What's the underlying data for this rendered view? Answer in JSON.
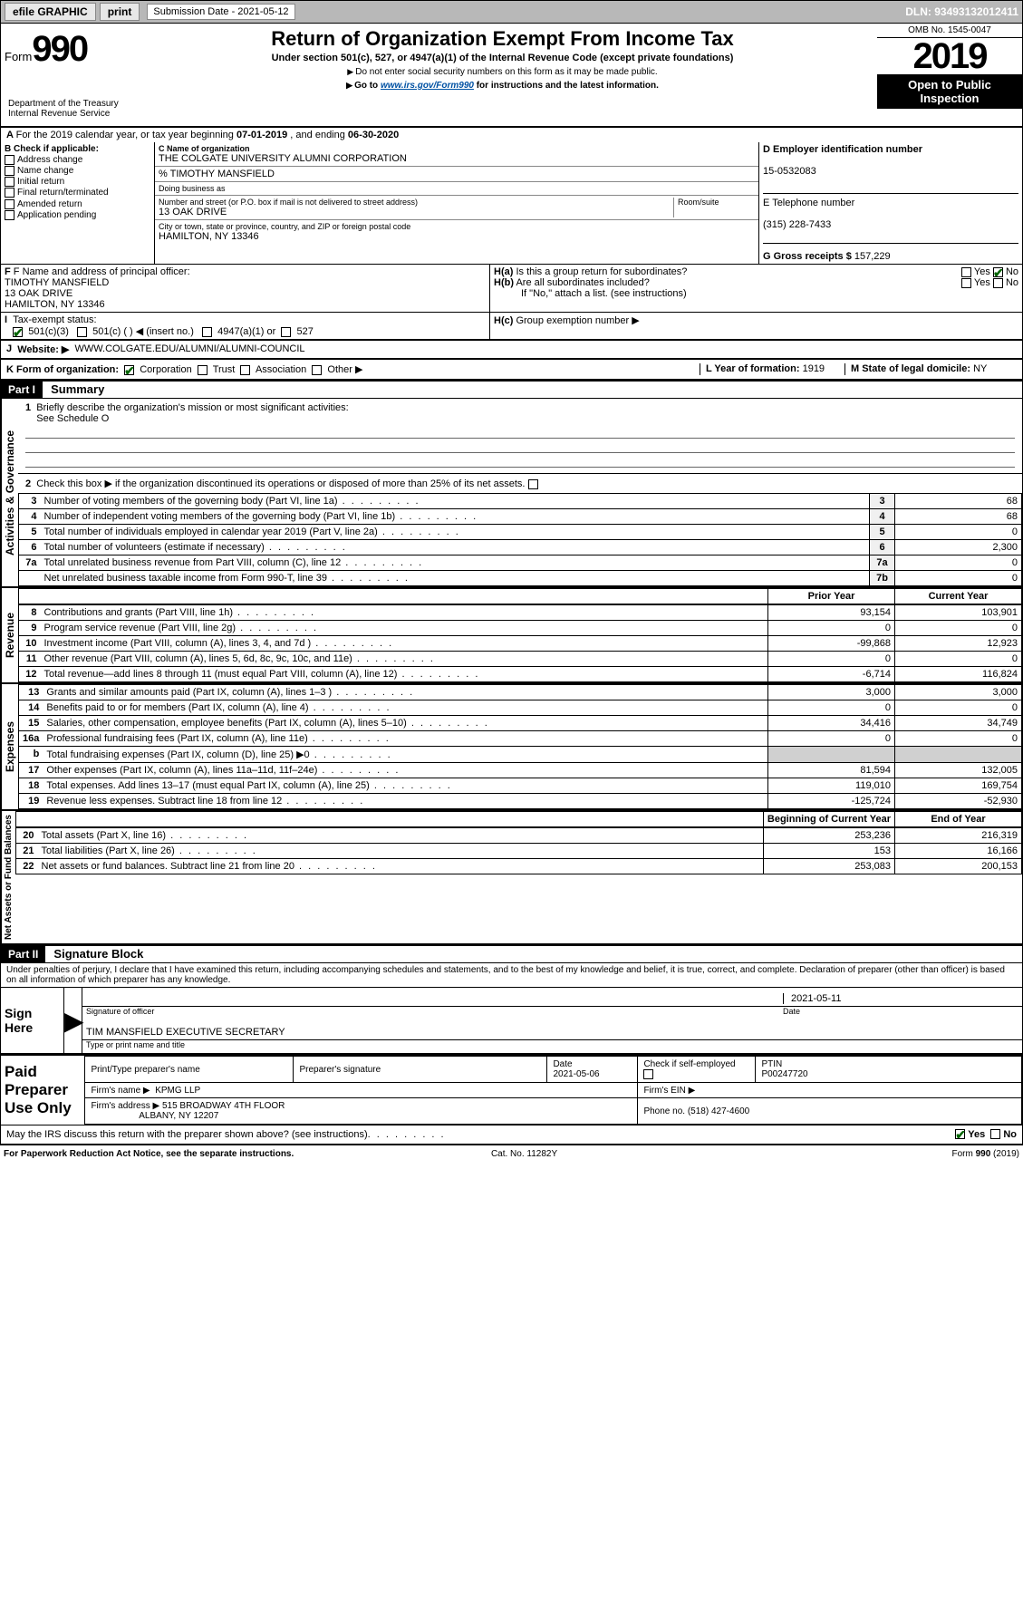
{
  "topbar": {
    "efile": "efile GRAPHIC",
    "print": "print",
    "sub_label": "Submission Date - 2021-05-12",
    "dln": "DLN: 93493132012411"
  },
  "header": {
    "form": "Form",
    "num": "990",
    "title": "Return of Organization Exempt From Income Tax",
    "sub1": "Under section 501(c), 527, or 4947(a)(1) of the Internal Revenue Code (except private foundations)",
    "sub2": "Do not enter social security numbers on this form as it may be made public.",
    "sub3_pre": "Go to ",
    "sub3_link": "www.irs.gov/Form990",
    "sub3_post": " for instructions and the latest information.",
    "omb": "OMB No. 1545-0047",
    "year": "2019",
    "open": "Open to Public Inspection",
    "dept1": "Department of the Treasury",
    "dept2": "Internal Revenue Service"
  },
  "line_a": {
    "text_pre": "For the 2019 calendar year, or tax year beginning ",
    "begin": "07-01-2019",
    "mid": " , and ending ",
    "end": "06-30-2020"
  },
  "boxB": {
    "title": "B Check if applicable:",
    "items": [
      "Address change",
      "Name change",
      "Initial return",
      "Final return/terminated",
      "Amended return",
      "Application pending"
    ]
  },
  "boxC": {
    "name_label": "C Name of organization",
    "name": "THE COLGATE UNIVERSITY ALUMNI CORPORATION",
    "care_of": "% TIMOTHY MANSFIELD",
    "dba_label": "Doing business as",
    "addr_label": "Number and street (or P.O. box if mail is not delivered to street address)",
    "room_label": "Room/suite",
    "addr": "13 OAK DRIVE",
    "city_label": "City or town, state or province, country, and ZIP or foreign postal code",
    "city": "HAMILTON, NY  13346"
  },
  "boxD": {
    "label": "D Employer identification number",
    "ein": "15-0532083"
  },
  "boxE": {
    "label": "E Telephone number",
    "phone": "(315) 228-7433"
  },
  "boxG": {
    "label": "G Gross receipts $",
    "amount": "157,229"
  },
  "boxF": {
    "label": "F Name and address of principal officer:",
    "name": "TIMOTHY MANSFIELD",
    "addr1": "13 OAK DRIVE",
    "addr2": "HAMILTON, NY  13346"
  },
  "boxH": {
    "a": "Is this a group return for subordinates?",
    "b": "Are all subordinates included?",
    "b_note": "If \"No,\" attach a list. (see instructions)",
    "c": "Group exemption number ▶",
    "yes": "Yes",
    "no": "No"
  },
  "boxI": {
    "label": "Tax-exempt status:",
    "o1": "501(c)(3)",
    "o2": "501(c) (   ) ◀ (insert no.)",
    "o3": "4947(a)(1) or",
    "o4": "527"
  },
  "boxJ": {
    "label": "Website: ▶",
    "url": "WWW.COLGATE.EDU/ALUMNI/ALUMNI-COUNCIL"
  },
  "boxK": {
    "label": "K Form of organization:",
    "o1": "Corporation",
    "o2": "Trust",
    "o3": "Association",
    "o4": "Other ▶"
  },
  "boxL": {
    "label": "L Year of formation:",
    "val": "1919"
  },
  "boxM": {
    "label": "M State of legal domicile:",
    "val": "NY"
  },
  "part1": {
    "label": "Part I",
    "title": "Summary",
    "l1": "Briefly describe the organization's mission or most significant activities:",
    "l1v": "See Schedule O",
    "l2": "Check this box ▶         if the organization discontinued its operations or disposed of more than 25% of its net assets.",
    "rows_gov": [
      {
        "n": "3",
        "t": "Number of voting members of the governing body (Part VI, line 1a)",
        "box": "3",
        "v": "68"
      },
      {
        "n": "4",
        "t": "Number of independent voting members of the governing body (Part VI, line 1b)",
        "box": "4",
        "v": "68"
      },
      {
        "n": "5",
        "t": "Total number of individuals employed in calendar year 2019 (Part V, line 2a)",
        "box": "5",
        "v": "0"
      },
      {
        "n": "6",
        "t": "Total number of volunteers (estimate if necessary)",
        "box": "6",
        "v": "2,300"
      },
      {
        "n": "7a",
        "t": "Total unrelated business revenue from Part VIII, column (C), line 12",
        "box": "7a",
        "v": "0"
      },
      {
        "n": "",
        "t": "Net unrelated business taxable income from Form 990-T, line 39",
        "box": "7b",
        "v": "0"
      }
    ],
    "hdr_py": "Prior Year",
    "hdr_cy": "Current Year",
    "rows_rev": [
      {
        "n": "8",
        "t": "Contributions and grants (Part VIII, line 1h)",
        "py": "93,154",
        "cy": "103,901"
      },
      {
        "n": "9",
        "t": "Program service revenue (Part VIII, line 2g)",
        "py": "0",
        "cy": "0"
      },
      {
        "n": "10",
        "t": "Investment income (Part VIII, column (A), lines 3, 4, and 7d )",
        "py": "-99,868",
        "cy": "12,923"
      },
      {
        "n": "11",
        "t": "Other revenue (Part VIII, column (A), lines 5, 6d, 8c, 9c, 10c, and 11e)",
        "py": "0",
        "cy": "0"
      },
      {
        "n": "12",
        "t": "Total revenue—add lines 8 through 11 (must equal Part VIII, column (A), line 12)",
        "py": "-6,714",
        "cy": "116,824"
      }
    ],
    "rows_exp": [
      {
        "n": "13",
        "t": "Grants and similar amounts paid (Part IX, column (A), lines 1–3 )",
        "py": "3,000",
        "cy": "3,000"
      },
      {
        "n": "14",
        "t": "Benefits paid to or for members (Part IX, column (A), line 4)",
        "py": "0",
        "cy": "0"
      },
      {
        "n": "15",
        "t": "Salaries, other compensation, employee benefits (Part IX, column (A), lines 5–10)",
        "py": "34,416",
        "cy": "34,749"
      },
      {
        "n": "16a",
        "t": "Professional fundraising fees (Part IX, column (A), line 11e)",
        "py": "0",
        "cy": "0"
      },
      {
        "n": "b",
        "t": "Total fundraising expenses (Part IX, column (D), line 25) ▶0",
        "py": "",
        "cy": "",
        "gray": true,
        "small": true
      },
      {
        "n": "17",
        "t": "Other expenses (Part IX, column (A), lines 11a–11d, 11f–24e)",
        "py": "81,594",
        "cy": "132,005"
      },
      {
        "n": "18",
        "t": "Total expenses. Add lines 13–17 (must equal Part IX, column (A), line 25)",
        "py": "119,010",
        "cy": "169,754"
      },
      {
        "n": "19",
        "t": "Revenue less expenses. Subtract line 18 from line 12",
        "py": "-125,724",
        "cy": "-52,930"
      }
    ],
    "hdr_boy": "Beginning of Current Year",
    "hdr_eoy": "End of Year",
    "rows_net": [
      {
        "n": "20",
        "t": "Total assets (Part X, line 16)",
        "py": "253,236",
        "cy": "216,319"
      },
      {
        "n": "21",
        "t": "Total liabilities (Part X, line 26)",
        "py": "153",
        "cy": "16,166"
      },
      {
        "n": "22",
        "t": "Net assets or fund balances. Subtract line 21 from line 20",
        "py": "253,083",
        "cy": "200,153"
      }
    ]
  },
  "vtabs": {
    "gov": "Activities & Governance",
    "rev": "Revenue",
    "exp": "Expenses",
    "net": "Net Assets or Fund Balances"
  },
  "part2": {
    "label": "Part II",
    "title": "Signature Block",
    "perjury": "Under penalties of perjury, I declare that I have examined this return, including accompanying schedules and statements, and to the best of my knowledge and belief, it is true, correct, and complete. Declaration of preparer (other than officer) is based on all information of which preparer has any knowledge.",
    "sign_here": "Sign Here",
    "sig_officer": "Signature of officer",
    "sig_date": "2021-05-11",
    "date_label": "Date",
    "name_title": "TIM MANSFIELD  EXECUTIVE SECRETARY",
    "name_title_label": "Type or print name and title"
  },
  "paid": {
    "side": "Paid Preparer Use Only",
    "h1": "Print/Type preparer's name",
    "h2": "Preparer's signature",
    "h3": "Date",
    "h4": "Check         if self-employed",
    "h5": "PTIN",
    "date": "2021-05-06",
    "ptin": "P00247720",
    "firm_name_l": "Firm's name    ▶",
    "firm_name": "KPMG LLP",
    "firm_ein_l": "Firm's EIN ▶",
    "firm_addr_l": "Firm's address ▶",
    "firm_addr1": "515 BROADWAY 4TH FLOOR",
    "firm_addr2": "ALBANY, NY  12207",
    "phone_l": "Phone no.",
    "phone": "(518) 427-4600"
  },
  "discuss": {
    "q": "May the IRS discuss this return with the preparer shown above? (see instructions)",
    "yes": "Yes",
    "no": "No"
  },
  "footer": {
    "pra": "For Paperwork Reduction Act Notice, see the separate instructions.",
    "cat": "Cat. No. 11282Y",
    "form": "Form 990 (2019)"
  },
  "colors": {
    "link": "#0051a3",
    "check": "#006400"
  }
}
